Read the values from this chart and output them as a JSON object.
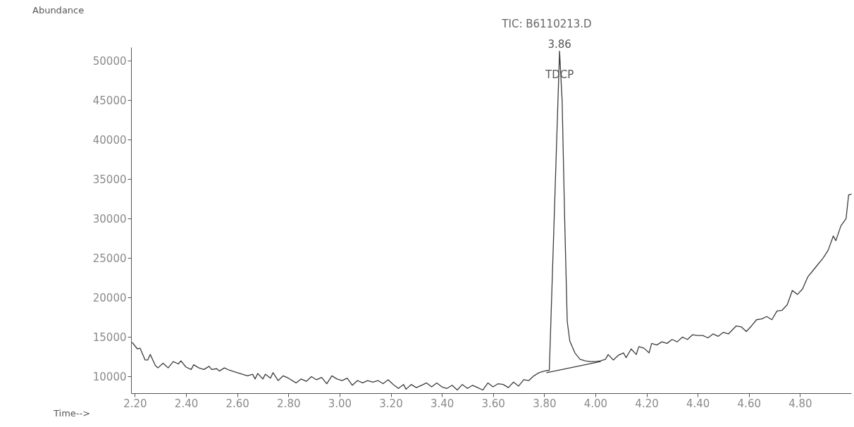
{
  "chart_data": {
    "type": "line",
    "title": "TIC: B6110213.D",
    "xlabel": "Time-->",
    "ylabel": "Abundance",
    "xlim": [
      2.185,
      5.0
    ],
    "ylim": [
      7900,
      51700
    ],
    "xticks": [
      {
        "value": 2.2,
        "label": "2.20"
      },
      {
        "value": 2.4,
        "label": "2.40"
      },
      {
        "value": 2.6,
        "label": "2.60"
      },
      {
        "value": 2.8,
        "label": "2.80"
      },
      {
        "value": 3.0,
        "label": "3.00"
      },
      {
        "value": 3.2,
        "label": "3.20"
      },
      {
        "value": 3.4,
        "label": "3.40"
      },
      {
        "value": 3.6,
        "label": "3.60"
      },
      {
        "value": 3.8,
        "label": "3.80"
      },
      {
        "value": 4.0,
        "label": "4.00"
      },
      {
        "value": 4.2,
        "label": "4.20"
      },
      {
        "value": 4.4,
        "label": "4.40"
      },
      {
        "value": 4.6,
        "label": "4.60"
      },
      {
        "value": 4.8,
        "label": "4.80"
      }
    ],
    "yticks": [
      10000,
      15000,
      20000,
      25000,
      30000,
      35000,
      40000,
      45000,
      50000
    ],
    "grid": false,
    "marker": "none",
    "line_style": "solid",
    "annotations": [
      {
        "text": "3.86",
        "x": 3.86,
        "y": 51200
      },
      {
        "text": "TDCP",
        "x": 3.86,
        "y": 47300
      }
    ],
    "series": [
      {
        "color": "#3c3c3c",
        "x": [
          2.19,
          2.21,
          2.22,
          2.24,
          2.25,
          2.26,
          2.28,
          2.29,
          2.31,
          2.32,
          2.33,
          2.35,
          2.37,
          2.38,
          2.4,
          2.42,
          2.43,
          2.45,
          2.47,
          2.49,
          2.5,
          2.52,
          2.53,
          2.55,
          2.57,
          2.6,
          2.62,
          2.64,
          2.66,
          2.67,
          2.68,
          2.7,
          2.71,
          2.73,
          2.74,
          2.76,
          2.78,
          2.8,
          2.83,
          2.85,
          2.87,
          2.89,
          2.91,
          2.93,
          2.95,
          2.97,
          2.99,
          3.01,
          3.03,
          3.05,
          3.07,
          3.09,
          3.11,
          3.13,
          3.15,
          3.17,
          3.19,
          3.21,
          3.23,
          3.25,
          3.26,
          3.28,
          3.3,
          3.32,
          3.34,
          3.36,
          3.38,
          3.4,
          3.42,
          3.44,
          3.46,
          3.48,
          3.5,
          3.52,
          3.54,
          3.56,
          3.58,
          3.6,
          3.62,
          3.64,
          3.66,
          3.68,
          3.7,
          3.72,
          3.74,
          3.76,
          3.78,
          3.8,
          3.82,
          3.86,
          3.87,
          3.88,
          3.89,
          3.9,
          3.92,
          3.94,
          3.96,
          3.98,
          4.0,
          4.02,
          4.04,
          4.05,
          4.07,
          4.09,
          4.11,
          4.12,
          4.14,
          4.16,
          4.17,
          4.19,
          4.21,
          4.22,
          4.24,
          4.26,
          4.28,
          4.3,
          4.32,
          4.34,
          4.36,
          4.38,
          4.4,
          4.42,
          4.44,
          4.46,
          4.48,
          4.5,
          4.52,
          4.55,
          4.57,
          4.59,
          4.61,
          4.63,
          4.65,
          4.67,
          4.69,
          4.71,
          4.73,
          4.75,
          4.77,
          4.79,
          4.81,
          4.83,
          4.85,
          4.87,
          4.89,
          4.91,
          4.93,
          4.94,
          4.96,
          4.98,
          4.99,
          5.0
        ],
        "values": [
          14300,
          13500,
          13600,
          12100,
          12100,
          12800,
          11400,
          11100,
          11700,
          11400,
          11100,
          11900,
          11600,
          12000,
          11200,
          10900,
          11500,
          11100,
          10900,
          11300,
          10900,
          11000,
          10700,
          11100,
          10800,
          10500,
          10300,
          10100,
          10300,
          9700,
          10400,
          9700,
          10300,
          9800,
          10500,
          9500,
          10100,
          9800,
          9200,
          9700,
          9400,
          10000,
          9600,
          9900,
          9100,
          10100,
          9700,
          9500,
          9800,
          8900,
          9500,
          9200,
          9500,
          9300,
          9500,
          9100,
          9600,
          9000,
          8500,
          9000,
          8400,
          9000,
          8600,
          8900,
          9200,
          8700,
          9200,
          8700,
          8500,
          8900,
          8300,
          9000,
          8500,
          8900,
          8600,
          8300,
          9200,
          8700,
          9100,
          9000,
          8600,
          9300,
          8800,
          9600,
          9500,
          10100,
          10500,
          10700,
          10800,
          51200,
          45000,
          30000,
          17000,
          14500,
          13000,
          12200,
          12000,
          11900,
          11900,
          12000,
          12200,
          12800,
          12100,
          12700,
          13000,
          12400,
          13500,
          12800,
          13800,
          13600,
          13000,
          14200,
          14000,
          14400,
          14200,
          14700,
          14400,
          15000,
          14700,
          15300,
          15200,
          15200,
          14900,
          15400,
          15100,
          15600,
          15400,
          16400,
          16300,
          15700,
          16400,
          17200,
          17300,
          17600,
          17200,
          18300,
          18400,
          19100,
          20900,
          20400,
          21100,
          22600,
          23400,
          24200,
          25000,
          26000,
          27800,
          27200,
          29100,
          30000,
          33000,
          33100
        ]
      },
      {
        "color": "#3c3c3c",
        "x": [
          3.81,
          4.02
        ],
        "values": [
          10500,
          11900
        ]
      }
    ]
  }
}
